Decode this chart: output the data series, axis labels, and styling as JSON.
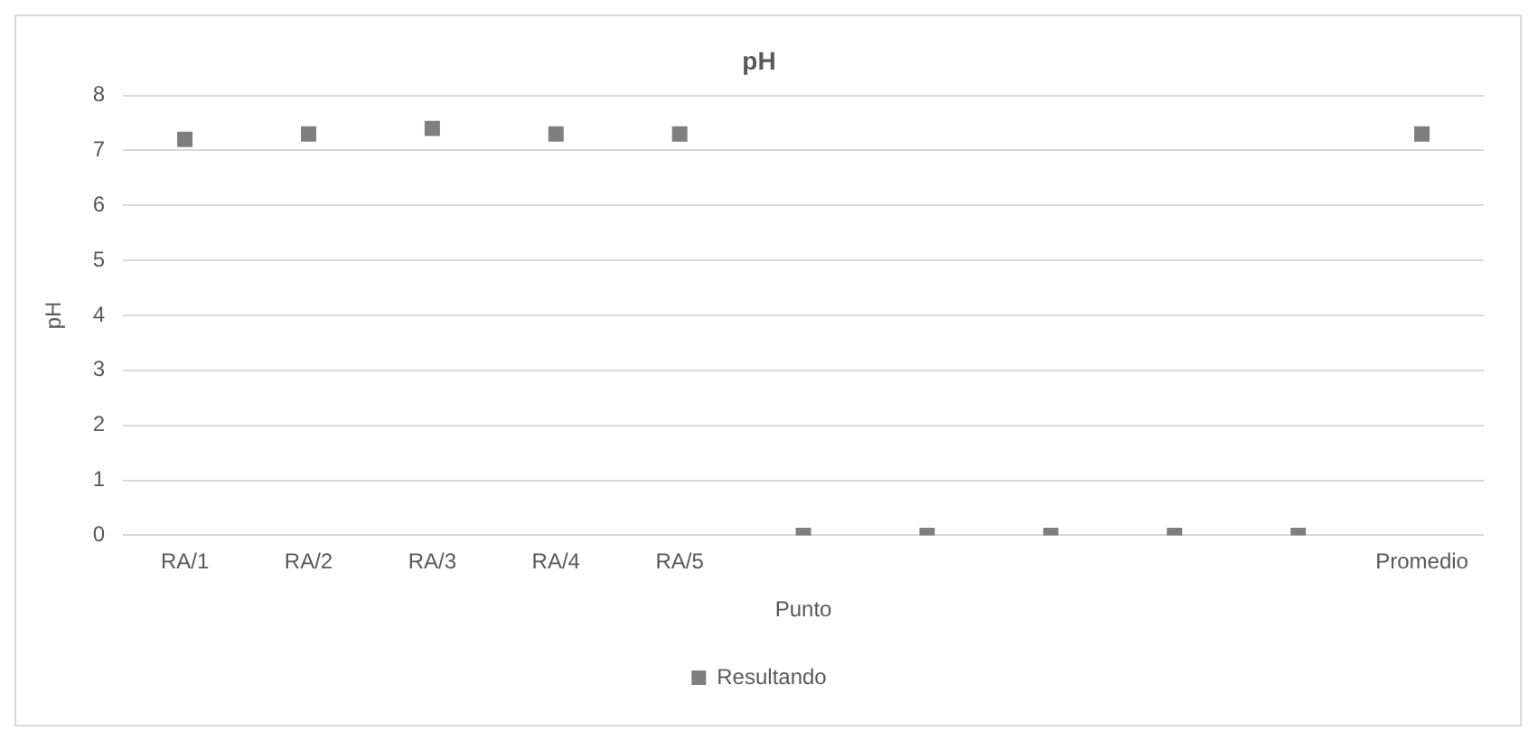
{
  "chart_data": {
    "type": "scatter",
    "title": "pH",
    "xlabel": "Punto",
    "ylabel": "pH",
    "categories": [
      "RA/1",
      "RA/2",
      "RA/3",
      "RA/4",
      "RA/5",
      null,
      null,
      null,
      null,
      null,
      "Promedio"
    ],
    "series": [
      {
        "name": "Resultando",
        "color": "#7f7f7f",
        "values": [
          7.2,
          7.3,
          7.4,
          7.3,
          7.3,
          0,
          0,
          0,
          0,
          0,
          7.3
        ]
      }
    ],
    "ylim": [
      0,
      8
    ],
    "yticks": [
      0,
      1,
      2,
      3,
      4,
      5,
      6,
      7,
      8
    ],
    "grid": "y",
    "legend": "bottom",
    "marker": "square"
  }
}
